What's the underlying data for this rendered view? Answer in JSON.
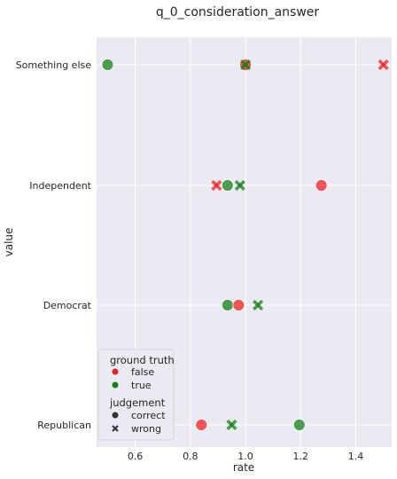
{
  "chart_data": {
    "type": "scatter",
    "title": "q_0_consideration_answer",
    "xlabel": "rate",
    "ylabel": "value",
    "xlim": [
      0.46,
      1.53
    ],
    "x_ticks": [
      0.6,
      0.8,
      1.0,
      1.2,
      1.4
    ],
    "x_tick_labels": [
      "0.6",
      "0.8",
      "1.0",
      "1.2",
      "1.4"
    ],
    "categories": [
      "Something else",
      "Independent",
      "Democrat",
      "Republican"
    ],
    "grid": true,
    "legend_position": "lower-left",
    "colors": {
      "false": "#f02020",
      "true": "#167f16"
    },
    "legend": {
      "hue_title": "ground truth",
      "hue_items": [
        {
          "key": "false",
          "label": "false"
        },
        {
          "key": "true",
          "label": "true"
        }
      ],
      "style_title": "judgement",
      "style_items": [
        {
          "key": "correct",
          "label": "correct"
        },
        {
          "key": "wrong",
          "label": "wrong"
        }
      ]
    },
    "points": [
      {
        "category": "Something else",
        "x": 0.5,
        "truth": "true",
        "judgement": "correct"
      },
      {
        "category": "Something else",
        "x": 1.0,
        "truth": "false",
        "judgement": "correct"
      },
      {
        "category": "Something else",
        "x": 1.0,
        "truth": "true",
        "judgement": "wrong"
      },
      {
        "category": "Something else",
        "x": 1.5,
        "truth": "false",
        "judgement": "wrong"
      },
      {
        "category": "Independent",
        "x": 0.895,
        "truth": "false",
        "judgement": "wrong"
      },
      {
        "category": "Independent",
        "x": 0.935,
        "truth": "true",
        "judgement": "correct"
      },
      {
        "category": "Independent",
        "x": 0.98,
        "truth": "true",
        "judgement": "wrong"
      },
      {
        "category": "Independent",
        "x": 1.275,
        "truth": "false",
        "judgement": "correct"
      },
      {
        "category": "Democrat",
        "x": 0.935,
        "truth": "true",
        "judgement": "correct"
      },
      {
        "category": "Democrat",
        "x": 0.975,
        "truth": "false",
        "judgement": "correct"
      },
      {
        "category": "Democrat",
        "x": 1.045,
        "truth": "true",
        "judgement": "wrong"
      },
      {
        "category": "Republican",
        "x": 0.84,
        "truth": "false",
        "judgement": "correct"
      },
      {
        "category": "Republican",
        "x": 0.95,
        "truth": "true",
        "judgement": "wrong"
      },
      {
        "category": "Republican",
        "x": 1.195,
        "truth": "true",
        "judgement": "correct"
      }
    ]
  }
}
